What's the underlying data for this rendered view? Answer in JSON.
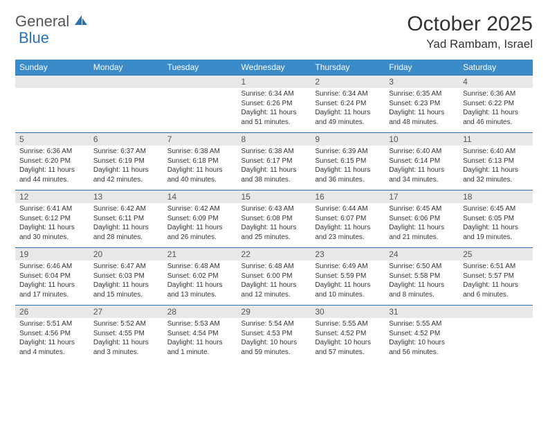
{
  "brand": {
    "part1": "General",
    "part2": "Blue"
  },
  "title": "October 2025",
  "location": "Yad Rambam, Israel",
  "colors": {
    "header_bg": "#3b8bc9",
    "header_text": "#ffffff",
    "rule": "#2a72b5",
    "daynum_bg": "#e8e8e8",
    "text": "#333333",
    "logo_gray": "#555555",
    "logo_blue": "#2a72b5"
  },
  "fonts": {
    "title_pt": 30,
    "location_pt": 17,
    "dow_pt": 12,
    "daynum_pt": 12,
    "body_pt": 10
  },
  "days_of_week": [
    "Sunday",
    "Monday",
    "Tuesday",
    "Wednesday",
    "Thursday",
    "Friday",
    "Saturday"
  ],
  "weeks": [
    [
      {
        "n": "",
        "sr": "",
        "ss": "",
        "dl": ""
      },
      {
        "n": "",
        "sr": "",
        "ss": "",
        "dl": ""
      },
      {
        "n": "",
        "sr": "",
        "ss": "",
        "dl": ""
      },
      {
        "n": "1",
        "sr": "Sunrise: 6:34 AM",
        "ss": "Sunset: 6:26 PM",
        "dl": "Daylight: 11 hours and 51 minutes."
      },
      {
        "n": "2",
        "sr": "Sunrise: 6:34 AM",
        "ss": "Sunset: 6:24 PM",
        "dl": "Daylight: 11 hours and 49 minutes."
      },
      {
        "n": "3",
        "sr": "Sunrise: 6:35 AM",
        "ss": "Sunset: 6:23 PM",
        "dl": "Daylight: 11 hours and 48 minutes."
      },
      {
        "n": "4",
        "sr": "Sunrise: 6:36 AM",
        "ss": "Sunset: 6:22 PM",
        "dl": "Daylight: 11 hours and 46 minutes."
      }
    ],
    [
      {
        "n": "5",
        "sr": "Sunrise: 6:36 AM",
        "ss": "Sunset: 6:20 PM",
        "dl": "Daylight: 11 hours and 44 minutes."
      },
      {
        "n": "6",
        "sr": "Sunrise: 6:37 AM",
        "ss": "Sunset: 6:19 PM",
        "dl": "Daylight: 11 hours and 42 minutes."
      },
      {
        "n": "7",
        "sr": "Sunrise: 6:38 AM",
        "ss": "Sunset: 6:18 PM",
        "dl": "Daylight: 11 hours and 40 minutes."
      },
      {
        "n": "8",
        "sr": "Sunrise: 6:38 AM",
        "ss": "Sunset: 6:17 PM",
        "dl": "Daylight: 11 hours and 38 minutes."
      },
      {
        "n": "9",
        "sr": "Sunrise: 6:39 AM",
        "ss": "Sunset: 6:15 PM",
        "dl": "Daylight: 11 hours and 36 minutes."
      },
      {
        "n": "10",
        "sr": "Sunrise: 6:40 AM",
        "ss": "Sunset: 6:14 PM",
        "dl": "Daylight: 11 hours and 34 minutes."
      },
      {
        "n": "11",
        "sr": "Sunrise: 6:40 AM",
        "ss": "Sunset: 6:13 PM",
        "dl": "Daylight: 11 hours and 32 minutes."
      }
    ],
    [
      {
        "n": "12",
        "sr": "Sunrise: 6:41 AM",
        "ss": "Sunset: 6:12 PM",
        "dl": "Daylight: 11 hours and 30 minutes."
      },
      {
        "n": "13",
        "sr": "Sunrise: 6:42 AM",
        "ss": "Sunset: 6:11 PM",
        "dl": "Daylight: 11 hours and 28 minutes."
      },
      {
        "n": "14",
        "sr": "Sunrise: 6:42 AM",
        "ss": "Sunset: 6:09 PM",
        "dl": "Daylight: 11 hours and 26 minutes."
      },
      {
        "n": "15",
        "sr": "Sunrise: 6:43 AM",
        "ss": "Sunset: 6:08 PM",
        "dl": "Daylight: 11 hours and 25 minutes."
      },
      {
        "n": "16",
        "sr": "Sunrise: 6:44 AM",
        "ss": "Sunset: 6:07 PM",
        "dl": "Daylight: 11 hours and 23 minutes."
      },
      {
        "n": "17",
        "sr": "Sunrise: 6:45 AM",
        "ss": "Sunset: 6:06 PM",
        "dl": "Daylight: 11 hours and 21 minutes."
      },
      {
        "n": "18",
        "sr": "Sunrise: 6:45 AM",
        "ss": "Sunset: 6:05 PM",
        "dl": "Daylight: 11 hours and 19 minutes."
      }
    ],
    [
      {
        "n": "19",
        "sr": "Sunrise: 6:46 AM",
        "ss": "Sunset: 6:04 PM",
        "dl": "Daylight: 11 hours and 17 minutes."
      },
      {
        "n": "20",
        "sr": "Sunrise: 6:47 AM",
        "ss": "Sunset: 6:03 PM",
        "dl": "Daylight: 11 hours and 15 minutes."
      },
      {
        "n": "21",
        "sr": "Sunrise: 6:48 AM",
        "ss": "Sunset: 6:02 PM",
        "dl": "Daylight: 11 hours and 13 minutes."
      },
      {
        "n": "22",
        "sr": "Sunrise: 6:48 AM",
        "ss": "Sunset: 6:00 PM",
        "dl": "Daylight: 11 hours and 12 minutes."
      },
      {
        "n": "23",
        "sr": "Sunrise: 6:49 AM",
        "ss": "Sunset: 5:59 PM",
        "dl": "Daylight: 11 hours and 10 minutes."
      },
      {
        "n": "24",
        "sr": "Sunrise: 6:50 AM",
        "ss": "Sunset: 5:58 PM",
        "dl": "Daylight: 11 hours and 8 minutes."
      },
      {
        "n": "25",
        "sr": "Sunrise: 6:51 AM",
        "ss": "Sunset: 5:57 PM",
        "dl": "Daylight: 11 hours and 6 minutes."
      }
    ],
    [
      {
        "n": "26",
        "sr": "Sunrise: 5:51 AM",
        "ss": "Sunset: 4:56 PM",
        "dl": "Daylight: 11 hours and 4 minutes."
      },
      {
        "n": "27",
        "sr": "Sunrise: 5:52 AM",
        "ss": "Sunset: 4:55 PM",
        "dl": "Daylight: 11 hours and 3 minutes."
      },
      {
        "n": "28",
        "sr": "Sunrise: 5:53 AM",
        "ss": "Sunset: 4:54 PM",
        "dl": "Daylight: 11 hours and 1 minute."
      },
      {
        "n": "29",
        "sr": "Sunrise: 5:54 AM",
        "ss": "Sunset: 4:53 PM",
        "dl": "Daylight: 10 hours and 59 minutes."
      },
      {
        "n": "30",
        "sr": "Sunrise: 5:55 AM",
        "ss": "Sunset: 4:52 PM",
        "dl": "Daylight: 10 hours and 57 minutes."
      },
      {
        "n": "31",
        "sr": "Sunrise: 5:55 AM",
        "ss": "Sunset: 4:52 PM",
        "dl": "Daylight: 10 hours and 56 minutes."
      },
      {
        "n": "",
        "sr": "",
        "ss": "",
        "dl": ""
      }
    ]
  ]
}
